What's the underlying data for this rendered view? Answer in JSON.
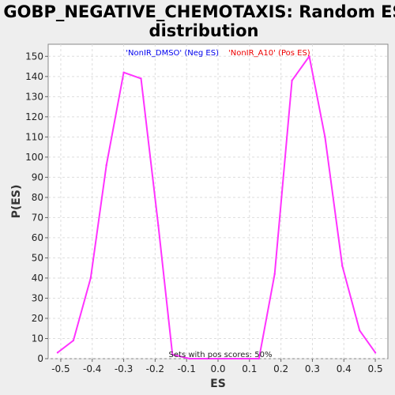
{
  "chart_data": {
    "type": "line",
    "title_line1": "GOBP_NEGATIVE_CHEMOTAXIS: Random ES",
    "title_line2": "distribution",
    "xlabel": "ES",
    "ylabel": "P(ES)",
    "xlim": [
      -0.54,
      0.54
    ],
    "ylim": [
      0,
      156
    ],
    "x_ticks": [
      -0.5,
      -0.4,
      -0.3,
      -0.2,
      -0.1,
      0.0,
      0.1,
      0.2,
      0.3,
      0.4,
      0.5
    ],
    "x_tick_labels": [
      "-0.5",
      "-0.4",
      "-0.3",
      "-0.2",
      "-0.1",
      "0.0",
      "0.1",
      "0.2",
      "0.3",
      "0.4",
      "0.5"
    ],
    "y_ticks": [
      0,
      10,
      20,
      30,
      40,
      50,
      60,
      70,
      80,
      90,
      100,
      110,
      120,
      130,
      140,
      150
    ],
    "y_tick_labels": [
      "0",
      "10",
      "20",
      "30",
      "40",
      "50",
      "60",
      "70",
      "80",
      "90",
      "100",
      "110",
      "120",
      "130",
      "140",
      "150"
    ],
    "grid": true,
    "series": [
      {
        "color": "#ff33ff",
        "x": [
          -0.51,
          -0.46,
          -0.405,
          -0.355,
          -0.3,
          -0.245,
          -0.19,
          -0.145,
          -0.09,
          -0.035,
          0.02,
          0.075,
          0.13,
          0.18,
          0.235,
          0.29,
          0.34,
          0.395,
          0.45,
          0.5
        ],
        "y": [
          3,
          9,
          40,
          96,
          142,
          139,
          66,
          2,
          0,
          0,
          0,
          0,
          0,
          42,
          138,
          150,
          110,
          46,
          14,
          3
        ]
      }
    ],
    "legend": [
      {
        "label": "'NonIR_DMSO' (Neg ES)",
        "color": "#0000ee"
      },
      {
        "label": "'NonIR_A10' (Pos ES)",
        "color": "#ee0000"
      }
    ],
    "legend_position": "top-center",
    "annotation": "Sets with pos scores: 50%"
  }
}
